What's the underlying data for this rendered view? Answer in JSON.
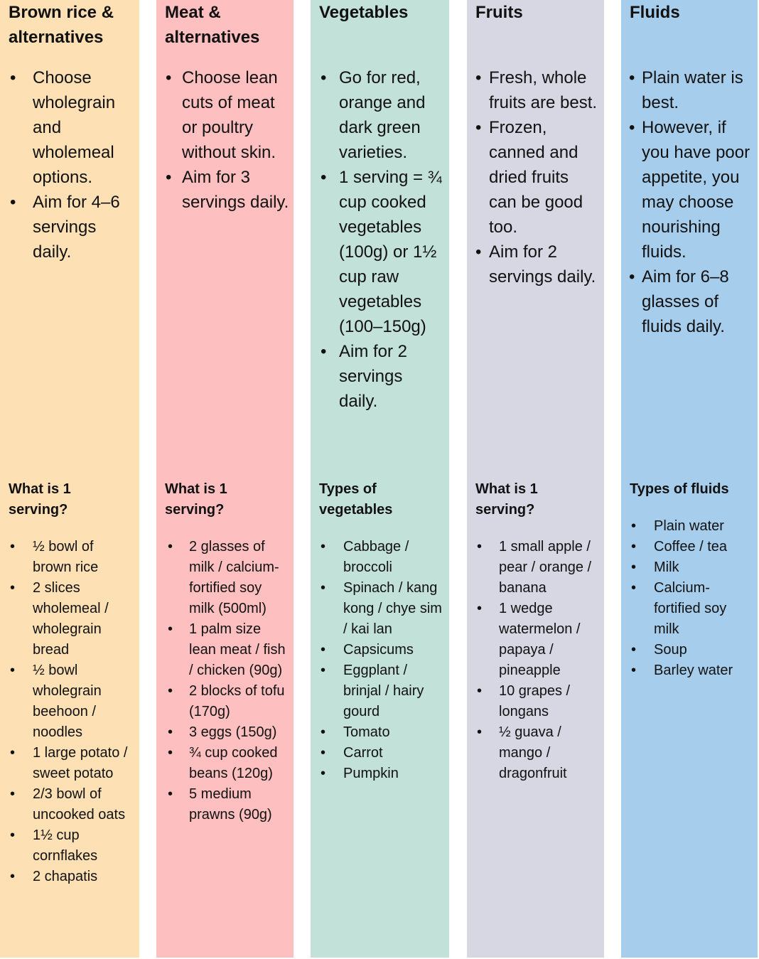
{
  "colors": {
    "grains": "#fde0b4",
    "meat": "#fdbfbf",
    "vegetables": "#c2e1d8",
    "fruits": "#d7d6e3",
    "fluids": "#a6ceec"
  },
  "columns": [
    {
      "title": "Brown rice & alternatives",
      "tips": [
        "Choose wholegrain and wholemeal options.",
        "Aim for 4–6 servings daily."
      ],
      "subheading": "What is 1 serving?",
      "items": [
        "½ bowl of brown rice",
        "2 slices wholemeal / wholegrain bread",
        "½ bowl wholegrain beehoon / noodles",
        "1 large potato / sweet potato",
        "2/3 bowl of uncooked oats",
        "1½ cup cornflakes",
        "2 chapatis"
      ]
    },
    {
      "title": "Meat & alternatives",
      "tips": [
        "Choose lean cuts of meat or poultry without skin.",
        "Aim for 3 servings daily."
      ],
      "subheading": "What is 1 serving?",
      "items": [
        "2 glasses of milk / calcium-fortified soy milk (500ml)",
        "1 palm size lean meat / fish / chicken (90g)",
        "2 blocks of tofu (170g)",
        "3 eggs (150g)",
        "¾ cup cooked beans (120g)",
        "5 medium prawns (90g)"
      ]
    },
    {
      "title": "Vegetables",
      "tips": [
        "Go for red, orange and dark green varieties.",
        "1 serving = ¾ cup cooked vegetables (100g) or 1½ cup raw vegetables (100–150g)",
        "Aim for 2 servings daily."
      ],
      "subheading": "Types of vegetables",
      "items": [
        "Cabbage / broccoli",
        "Spinach / kang kong / chye sim / kai lan",
        "Capsicums",
        "Eggplant / brinjal / hairy gourd",
        "Tomato",
        "Carrot",
        "Pumpkin"
      ]
    },
    {
      "title": "Fruits",
      "tips": [
        "Fresh, whole fruits are best.",
        "Frozen, canned and dried fruits can be good too.",
        "Aim for 2 servings daily."
      ],
      "subheading": "What is 1 serving?",
      "items": [
        "1 small apple / pear / orange / banana",
        "1 wedge watermelon / papaya / pineapple",
        "10 grapes / longans",
        "½ guava / mango / dragonfruit"
      ]
    },
    {
      "title": "Fluids",
      "tips": [
        "Plain water is best.",
        "However, if you have poor appetite, you may choose nourishing fluids.",
        "Aim for 6–8 glasses of fluids daily."
      ],
      "subheading": "Types of fluids",
      "items": [
        "Plain water",
        "Coffee / tea",
        "Milk",
        "Calcium-fortified soy milk",
        "Soup",
        "Barley water"
      ]
    }
  ]
}
